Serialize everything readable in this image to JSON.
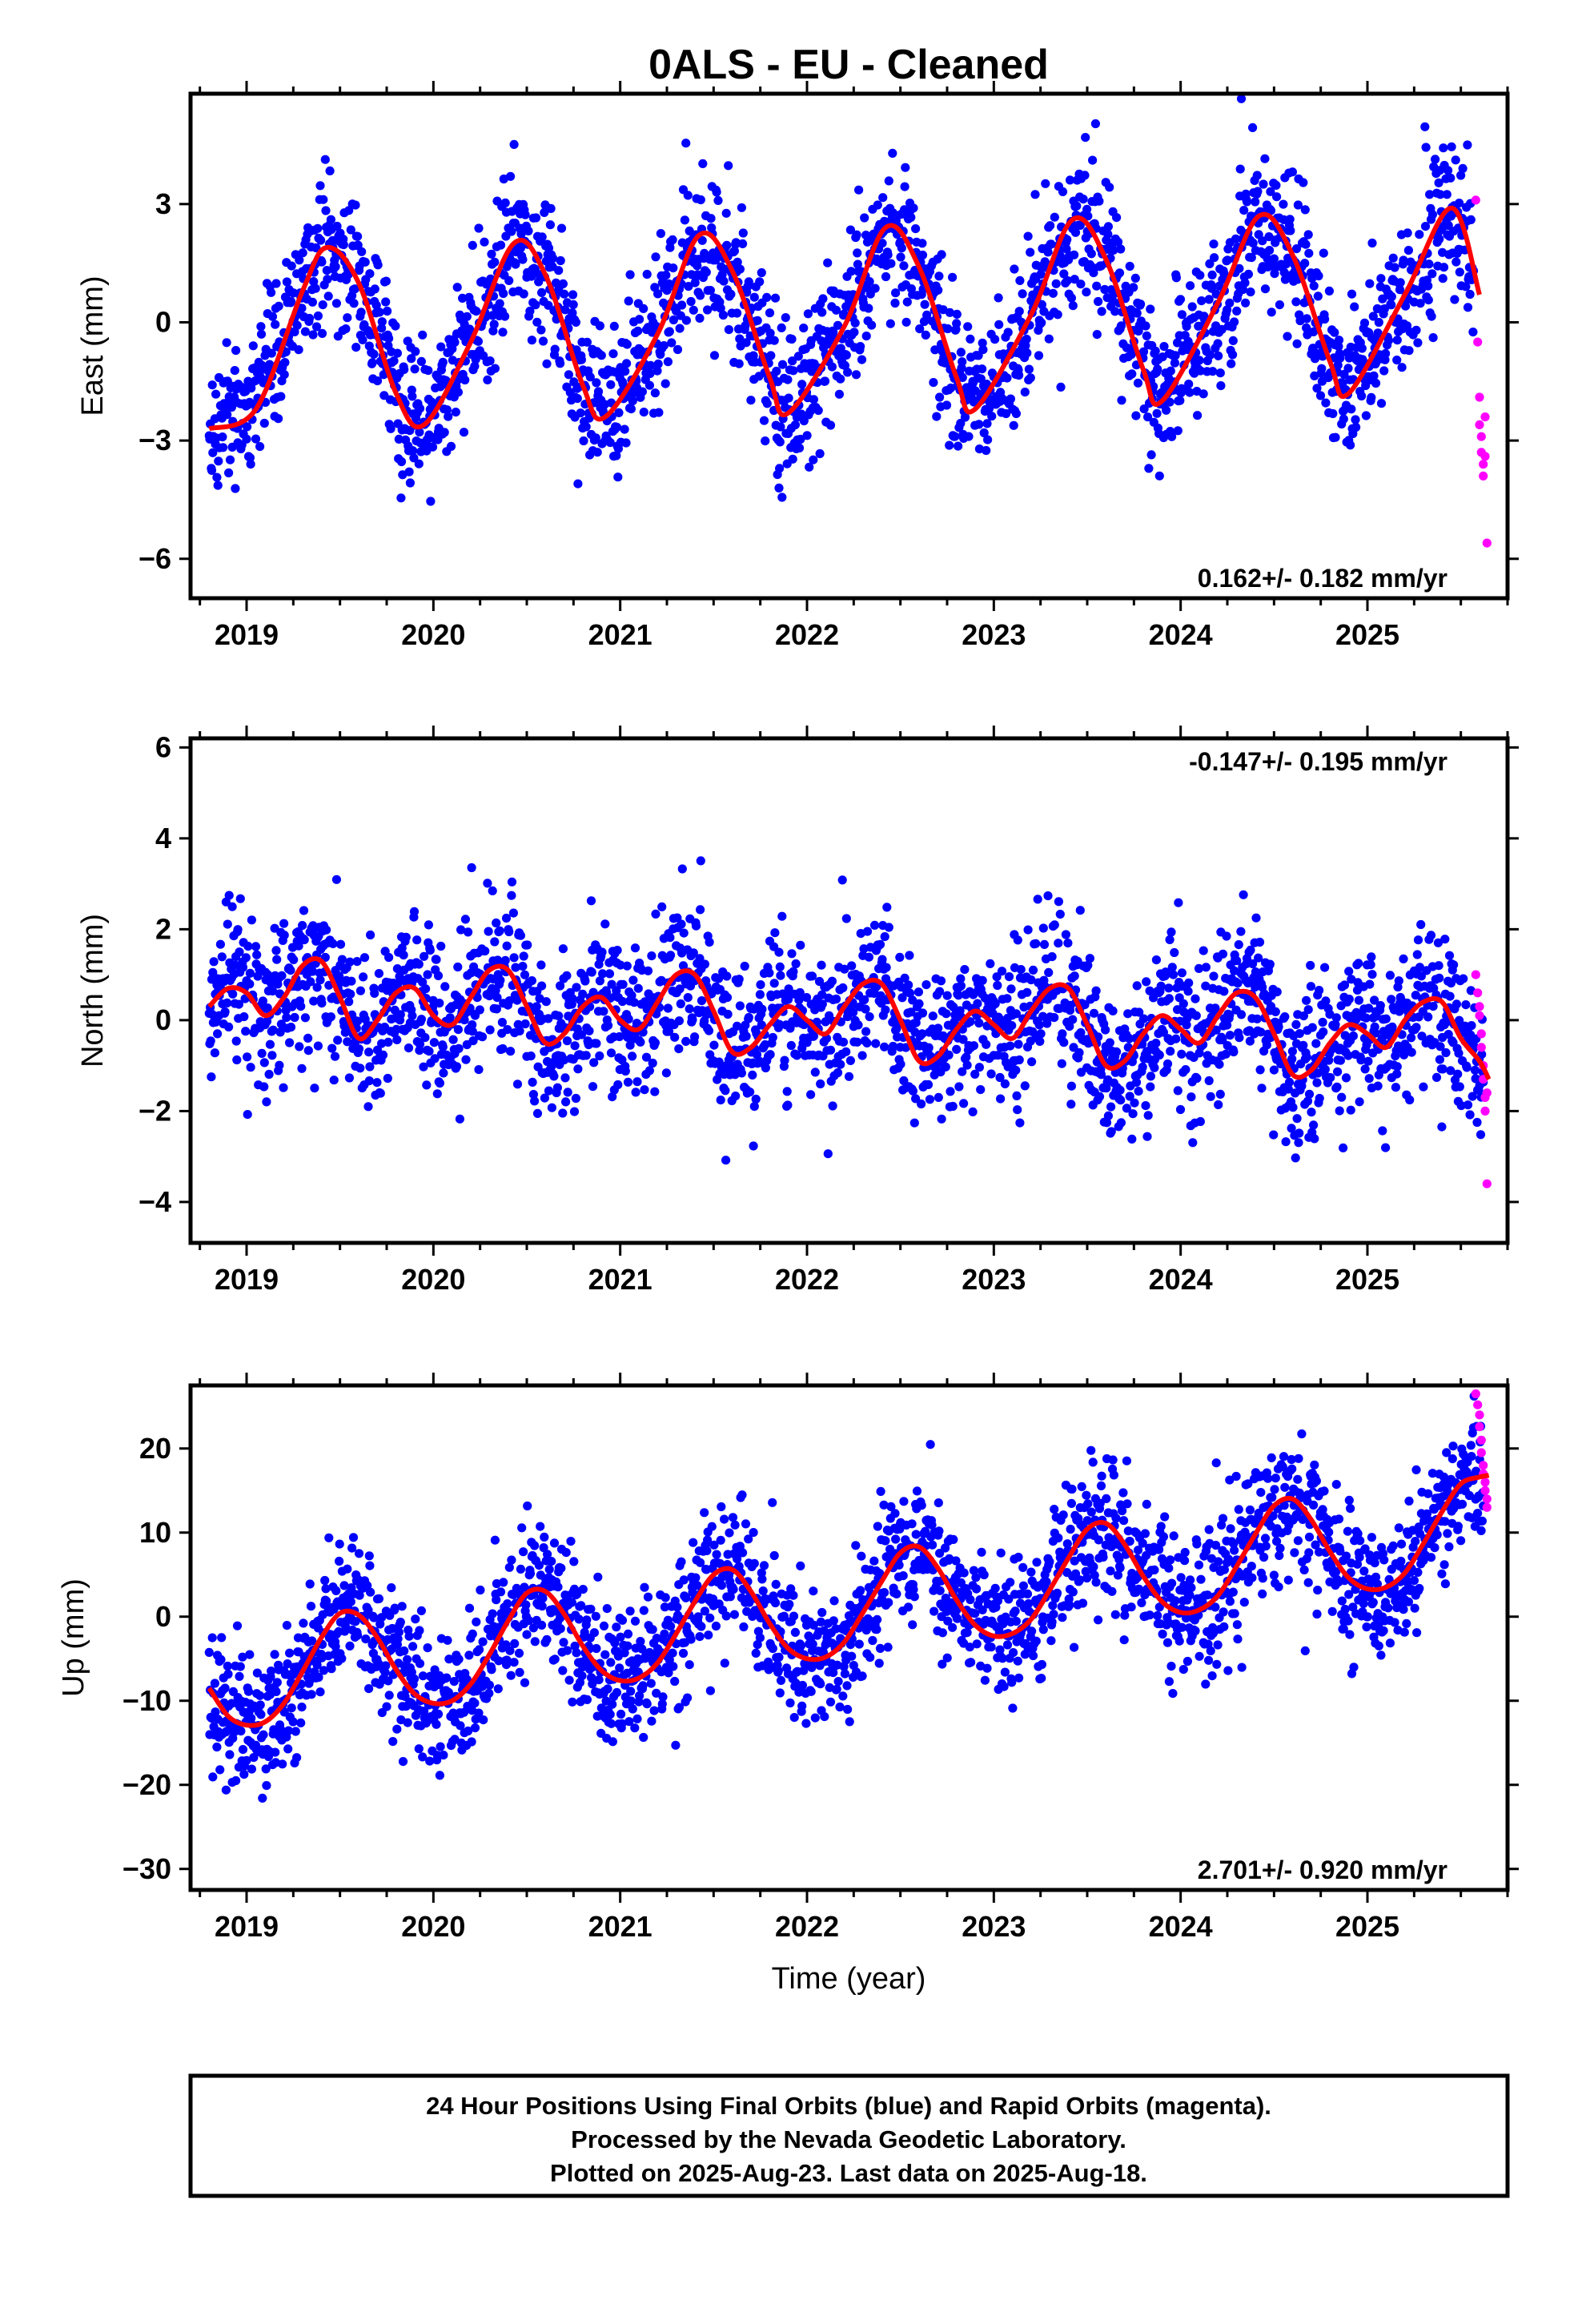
{
  "chart_data": {
    "title": "0ALS  - EU - Cleaned",
    "xlabel": "Time (year)",
    "x_ticks": [
      "2019",
      "2020",
      "2021",
      "2022",
      "2023",
      "2024",
      "2025"
    ],
    "xlim": [
      2018.7,
      2025.75
    ],
    "colors": {
      "final": "#0000ff",
      "rapid": "#ff00ff",
      "model": "#ff0000"
    },
    "panels": [
      {
        "type": "scatter",
        "ylabel": "East (mm)",
        "ylim": [
          -7,
          5.8
        ],
        "y_ticks": [
          3,
          0,
          -3,
          -6
        ],
        "y_tick_labels": [
          "3",
          "0",
          "−3",
          "−6"
        ],
        "rate_label": "0.162+/- 0.182 mm/yr",
        "rate_position": "bottom-right",
        "series": [
          {
            "name": "model",
            "x": [
              2018.8,
              2019.05,
              2019.3,
              2019.43,
              2019.6,
              2019.8,
              2019.95,
              2020.2,
              2020.43,
              2020.6,
              2020.8,
              2020.92,
              2021.2,
              2021.42,
              2021.6,
              2021.8,
              2021.9,
              2022.2,
              2022.42,
              2022.6,
              2022.8,
              2022.9,
              2023.2,
              2023.42,
              2023.6,
              2023.8,
              2023.9,
              2024.2,
              2024.42,
              2024.6,
              2024.8,
              2024.9,
              2025.2,
              2025.45,
              2025.6
            ],
            "y": [
              -2.7,
              -2.2,
              0.8,
              1.9,
              1.0,
              -1.8,
              -2.6,
              -0.5,
              2.0,
              1.2,
              -1.6,
              -2.4,
              -0.3,
              2.2,
              1.3,
              -1.4,
              -2.3,
              -0.1,
              2.4,
              1.4,
              -1.4,
              -2.2,
              0.2,
              2.6,
              1.6,
              -1.2,
              -2.0,
              0.5,
              2.7,
              1.7,
              -1.0,
              -1.8,
              0.7,
              2.9,
              0.7
            ]
          },
          {
            "name": "rapid",
            "x": [
              2025.58,
              2025.59,
              2025.6,
              2025.6,
              2025.61,
              2025.61,
              2025.62,
              2025.62,
              2025.63,
              2025.63,
              2025.64
            ],
            "y": [
              3.1,
              -0.5,
              -1.9,
              -2.6,
              -2.9,
              -3.3,
              -3.6,
              -3.9,
              -3.4,
              -2.4,
              -5.6
            ]
          }
        ]
      },
      {
        "type": "scatter",
        "ylabel": "North (mm)",
        "ylim": [
          -4.9,
          6.2
        ],
        "y_ticks": [
          6,
          4,
          2,
          0,
          -2,
          -4
        ],
        "y_tick_labels": [
          "6",
          "4",
          "2",
          "0",
          "−2",
          "−4"
        ],
        "rate_label": "-0.147+/- 0.195 mm/yr",
        "rate_position": "top-right",
        "series": [
          {
            "name": "model",
            "x": [
              2018.8,
              2018.9,
              2019.0,
              2019.1,
              2019.2,
              2019.3,
              2019.4,
              2019.5,
              2019.6,
              2019.7,
              2019.8,
              2019.9,
              2020.0,
              2020.1,
              2020.2,
              2020.3,
              2020.4,
              2020.5,
              2020.6,
              2020.7,
              2020.8,
              2020.9,
              2021.0,
              2021.1,
              2021.2,
              2021.3,
              2021.4,
              2021.5,
              2021.6,
              2021.7,
              2021.8,
              2021.9,
              2022.0,
              2022.1,
              2022.2,
              2022.3,
              2022.4,
              2022.5,
              2022.6,
              2022.7,
              2022.8,
              2022.9,
              2023.0,
              2023.1,
              2023.2,
              2023.3,
              2023.4,
              2023.5,
              2023.6,
              2023.7,
              2023.8,
              2023.9,
              2024.0,
              2024.1,
              2024.2,
              2024.3,
              2024.4,
              2024.5,
              2024.6,
              2024.7,
              2024.8,
              2024.9,
              2025.0,
              2025.1,
              2025.2,
              2025.3,
              2025.4,
              2025.5,
              2025.6,
              2025.65
            ],
            "y": [
              0.3,
              0.7,
              0.6,
              0.1,
              0.5,
              1.2,
              1.3,
              0.5,
              -0.4,
              0.0,
              0.6,
              0.7,
              0.1,
              -0.1,
              0.5,
              1.1,
              1.1,
              0.3,
              -0.5,
              -0.3,
              0.3,
              0.5,
              0.0,
              -0.2,
              0.4,
              1.0,
              1.0,
              0.2,
              -0.7,
              -0.6,
              -0.1,
              0.3,
              0.0,
              -0.3,
              0.3,
              0.8,
              0.8,
              0.0,
              -0.9,
              -0.8,
              -0.2,
              0.2,
              -0.1,
              -0.4,
              0.2,
              0.7,
              0.7,
              -0.1,
              -1.0,
              -0.9,
              -0.3,
              0.1,
              -0.2,
              -0.5,
              0.1,
              0.6,
              0.5,
              -0.3,
              -1.2,
              -1.1,
              -0.5,
              -0.1,
              -0.3,
              -0.6,
              0.0,
              0.4,
              0.4,
              -0.4,
              -0.9,
              -1.3
            ]
          },
          {
            "name": "rapid",
            "x": [
              2025.58,
              2025.59,
              2025.6,
              2025.6,
              2025.61,
              2025.61,
              2025.62,
              2025.62,
              2025.63,
              2025.63,
              2025.64,
              2025.64
            ],
            "y": [
              1.0,
              0.6,
              0.3,
              0.1,
              -0.3,
              -0.6,
              -1.0,
              -1.3,
              -1.7,
              -2.0,
              -1.6,
              -3.6
            ]
          }
        ]
      },
      {
        "type": "scatter",
        "ylabel": "Up (mm)",
        "ylim": [
          -32.5,
          27.5
        ],
        "y_ticks": [
          20,
          10,
          0,
          -10,
          -20,
          -30
        ],
        "y_tick_labels": [
          "20",
          "10",
          "0",
          "−10",
          "−20",
          "−30"
        ],
        "rate_label": "2.701+/- 0.920 mm/yr",
        "rate_position": "bottom-right",
        "series": [
          {
            "name": "model",
            "x": [
              2018.8,
              2018.9,
              2019.0,
              2019.1,
              2019.2,
              2019.3,
              2019.4,
              2019.5,
              2019.6,
              2019.7,
              2019.8,
              2019.9,
              2020.0,
              2020.1,
              2020.2,
              2020.3,
              2020.4,
              2020.5,
              2020.6,
              2020.7,
              2020.8,
              2020.9,
              2021.0,
              2021.1,
              2021.2,
              2021.3,
              2021.4,
              2021.5,
              2021.6,
              2021.7,
              2021.8,
              2021.9,
              2022.0,
              2022.1,
              2022.2,
              2022.3,
              2022.4,
              2022.5,
              2022.6,
              2022.7,
              2022.8,
              2022.9,
              2023.0,
              2023.1,
              2023.2,
              2023.3,
              2023.4,
              2023.5,
              2023.6,
              2023.7,
              2023.8,
              2023.9,
              2024.0,
              2024.1,
              2024.2,
              2024.3,
              2024.4,
              2024.5,
              2024.6,
              2024.7,
              2024.8,
              2024.9,
              2025.0,
              2025.1,
              2025.2,
              2025.3,
              2025.4,
              2025.5,
              2025.6,
              2025.65
            ],
            "y": [
              -8.5,
              -11.8,
              -12.9,
              -12.5,
              -10.3,
              -6.5,
              -2.5,
              0.4,
              0.2,
              -2.5,
              -6.3,
              -9.2,
              -10.3,
              -10.0,
              -8.0,
              -4.5,
              -0.5,
              2.8,
              3.0,
              0.3,
              -3.5,
              -6.4,
              -7.6,
              -7.3,
              -5.5,
              -2.0,
              1.8,
              5.0,
              5.6,
              3.0,
              -0.8,
              -3.8,
              -5.0,
              -4.8,
              -3.0,
              0.5,
              4.2,
              7.6,
              8.3,
              5.8,
              2.0,
              -1.0,
              -2.3,
              -2.0,
              -0.3,
              3.2,
              7.0,
              10.4,
              11.1,
              8.6,
              4.8,
              1.8,
              0.5,
              0.8,
              2.5,
              6.0,
              9.8,
              13.2,
              14.0,
              11.5,
              7.7,
              4.6,
              3.3,
              3.5,
              5.2,
              8.7,
              12.5,
              15.8,
              16.6,
              16.8
            ]
          },
          {
            "name": "rapid",
            "x": [
              2025.58,
              2025.59,
              2025.6,
              2025.6,
              2025.61,
              2025.61,
              2025.62,
              2025.62,
              2025.63,
              2025.63,
              2025.64,
              2025.64
            ],
            "y": [
              26.5,
              25.2,
              24.0,
              22.6,
              21.0,
              19.5,
              18.0,
              17.0,
              16.0,
              15.0,
              14.0,
              13.0
            ]
          }
        ]
      }
    ]
  },
  "footer": {
    "line1": "24 Hour Positions Using Final Orbits (blue) and Rapid Orbits (magenta).",
    "line2": "Processed by the Nevada Geodetic Laboratory.",
    "line3": "Plotted on 2025-Aug-23. Last data on 2025-Aug-18."
  }
}
